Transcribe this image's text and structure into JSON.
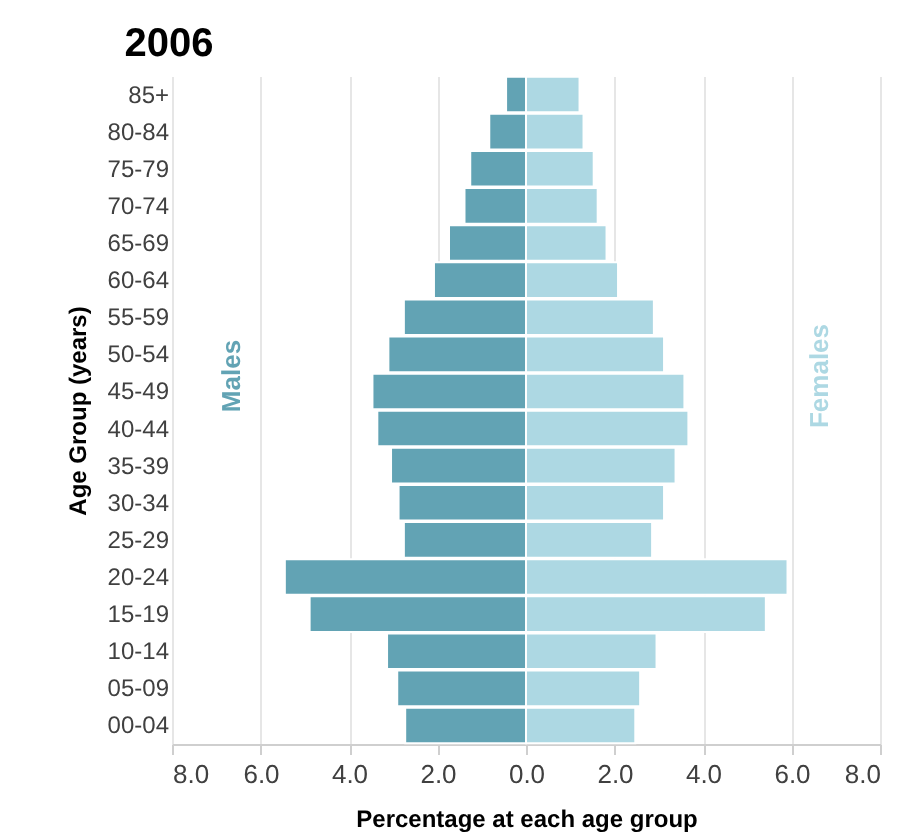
{
  "chart_data": {
    "type": "bar",
    "orientation": "horizontal",
    "title": "2006",
    "xlabel": "Percentage at each age group",
    "ylabel": "Age Group (years)",
    "categories": [
      "85+",
      "80-84",
      "75-79",
      "70-74",
      "65-69",
      "60-64",
      "55-59",
      "50-54",
      "45-49",
      "40-44",
      "35-39",
      "30-34",
      "25-29",
      "20-24",
      "15-19",
      "10-14",
      "05-09",
      "00-04"
    ],
    "series": [
      {
        "name": "Males",
        "color": "#62a3b4",
        "values": [
          -0.45,
          -0.83,
          -1.26,
          -1.39,
          -1.74,
          -2.08,
          -2.76,
          -3.11,
          -3.47,
          -3.36,
          -3.05,
          -2.88,
          -2.76,
          -5.45,
          -4.89,
          -3.14,
          -2.91,
          -2.73
        ]
      },
      {
        "name": "Females",
        "color": "#add8e3",
        "values": [
          1.21,
          1.3,
          1.53,
          1.62,
          1.82,
          2.08,
          2.89,
          3.12,
          3.58,
          3.67,
          3.38,
          3.12,
          2.85,
          5.91,
          5.42,
          2.95,
          2.58,
          2.47
        ]
      }
    ],
    "xlim": [
      -8,
      8
    ],
    "xticks": [
      {
        "value": -8,
        "label": "8.0"
      },
      {
        "value": -6,
        "label": "6.0"
      },
      {
        "value": -4,
        "label": "4.0"
      },
      {
        "value": -2,
        "label": "2.0"
      },
      {
        "value": 0,
        "label": "0.0"
      },
      {
        "value": 2,
        "label": "2.0"
      },
      {
        "value": 4,
        "label": "4.0"
      },
      {
        "value": 6,
        "label": "6.0"
      },
      {
        "value": 8,
        "label": "8.0"
      }
    ],
    "grid": "x",
    "legend": false,
    "stacked": true
  }
}
